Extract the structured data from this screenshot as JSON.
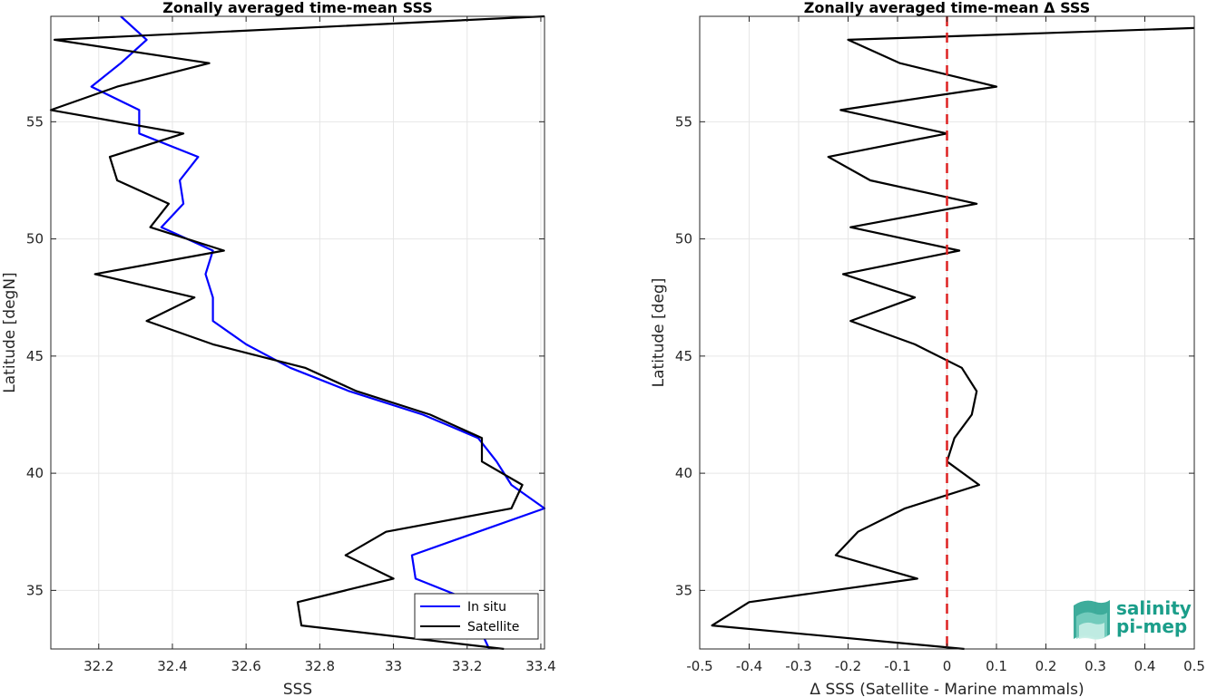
{
  "chart_data": [
    {
      "type": "line",
      "title": "Zonally averaged time-mean SSS",
      "xlabel": "SSS",
      "ylabel": "Latitude [degN]",
      "xlim": [
        32.07,
        33.41
      ],
      "ylim": [
        32.5,
        59.5
      ],
      "xticks": [
        32.2,
        32.4,
        32.6,
        32.8,
        33,
        33.2,
        33.4
      ],
      "xtick_labels": [
        "32.2",
        "32.4",
        "32.6",
        "32.8",
        "33",
        "33.2",
        "33.4"
      ],
      "yticks": [
        35,
        40,
        45,
        50,
        55
      ],
      "ytick_labels": [
        "35",
        "40",
        "45",
        "50",
        "55"
      ],
      "grid": true,
      "legend": "bottom-right",
      "series": [
        {
          "name": "In situ",
          "color": "#0000ff",
          "points": [
            [
              32.26,
              59.5
            ],
            [
              32.33,
              58.5
            ],
            [
              32.26,
              57.5
            ],
            [
              32.18,
              56.5
            ],
            [
              32.31,
              55.5
            ],
            [
              32.31,
              54.5
            ],
            [
              32.47,
              53.5
            ],
            [
              32.42,
              52.5
            ],
            [
              32.43,
              51.5
            ],
            [
              32.37,
              50.5
            ],
            [
              32.51,
              49.5
            ],
            [
              32.49,
              48.5
            ],
            [
              32.51,
              47.5
            ],
            [
              32.51,
              46.5
            ],
            [
              32.6,
              45.5
            ],
            [
              32.72,
              44.5
            ],
            [
              32.88,
              43.5
            ],
            [
              33.08,
              42.5
            ],
            [
              33.23,
              41.5
            ],
            [
              33.28,
              40.5
            ],
            [
              33.32,
              39.5
            ],
            [
              33.41,
              38.5
            ],
            [
              33.23,
              37.5
            ],
            [
              33.05,
              36.5
            ],
            [
              33.06,
              35.5
            ],
            [
              33.22,
              34.5
            ],
            [
              33.23,
              33.5
            ],
            [
              33.26,
              32.5
            ]
          ]
        },
        {
          "name": "Satellite",
          "color": "#000000",
          "points": [
            [
              33.41,
              59.5
            ],
            [
              32.08,
              58.5
            ],
            [
              32.5,
              57.5
            ],
            [
              32.25,
              56.5
            ],
            [
              32.07,
              55.5
            ],
            [
              32.43,
              54.5
            ],
            [
              32.23,
              53.5
            ],
            [
              32.25,
              52.5
            ],
            [
              32.39,
              51.5
            ],
            [
              32.34,
              50.5
            ],
            [
              32.54,
              49.5
            ],
            [
              32.19,
              48.5
            ],
            [
              32.46,
              47.5
            ],
            [
              32.33,
              46.5
            ],
            [
              32.51,
              45.5
            ],
            [
              32.76,
              44.5
            ],
            [
              32.9,
              43.5
            ],
            [
              33.1,
              42.5
            ],
            [
              33.24,
              41.5
            ],
            [
              33.24,
              40.5
            ],
            [
              33.35,
              39.5
            ],
            [
              33.32,
              38.5
            ],
            [
              32.98,
              37.5
            ],
            [
              32.87,
              36.5
            ],
            [
              33.0,
              35.5
            ],
            [
              32.74,
              34.5
            ],
            [
              32.75,
              33.5
            ],
            [
              33.3,
              32.5
            ]
          ]
        }
      ]
    },
    {
      "type": "line",
      "title": "Zonally averaged time-mean Δ SSS",
      "xlabel": "Δ SSS (Satellite - Marine mammals)",
      "ylabel": "Latitude [deg]",
      "xlim": [
        -0.5,
        0.5
      ],
      "ylim": [
        32.5,
        59.5
      ],
      "xticks": [
        -0.5,
        -0.4,
        -0.3,
        -0.2,
        -0.1,
        0,
        0.1,
        0.2,
        0.3,
        0.4,
        0.5
      ],
      "xtick_labels": [
        "-0.5",
        "-0.4",
        "-0.3",
        "-0.2",
        "-0.1",
        "0",
        "0.1",
        "0.2",
        "0.3",
        "0.4",
        "0.5"
      ],
      "yticks": [
        35,
        40,
        45,
        50,
        55
      ],
      "ytick_labels": [
        "35",
        "40",
        "45",
        "50",
        "55"
      ],
      "grid": true,
      "reference_line": {
        "x": 0,
        "color": "#dd2222",
        "style": "dashed"
      },
      "series": [
        {
          "color": "#000000",
          "points": [
            [
              0.52,
              59.0
            ],
            [
              -0.2,
              58.5
            ],
            [
              -0.095,
              57.5
            ],
            [
              0.1,
              56.5
            ],
            [
              -0.215,
              55.5
            ],
            [
              0.0,
              54.5
            ],
            [
              -0.24,
              53.5
            ],
            [
              -0.155,
              52.5
            ],
            [
              0.06,
              51.5
            ],
            [
              -0.195,
              50.5
            ],
            [
              0.025,
              49.5
            ],
            [
              -0.21,
              48.5
            ],
            [
              -0.065,
              47.5
            ],
            [
              -0.195,
              46.5
            ],
            [
              -0.065,
              45.5
            ],
            [
              0.03,
              44.5
            ],
            [
              0.06,
              43.5
            ],
            [
              0.05,
              42.5
            ],
            [
              0.015,
              41.5
            ],
            [
              0.0,
              40.5
            ],
            [
              0.065,
              39.5
            ],
            [
              -0.085,
              38.5
            ],
            [
              -0.18,
              37.5
            ],
            [
              -0.225,
              36.5
            ],
            [
              -0.06,
              35.5
            ],
            [
              -0.4,
              34.5
            ],
            [
              -0.475,
              33.5
            ],
            [
              0.035,
              32.5
            ]
          ]
        }
      ]
    }
  ],
  "logo": {
    "line1": "salinity",
    "line2": "pi-mep",
    "color": "#1b9e8a"
  }
}
